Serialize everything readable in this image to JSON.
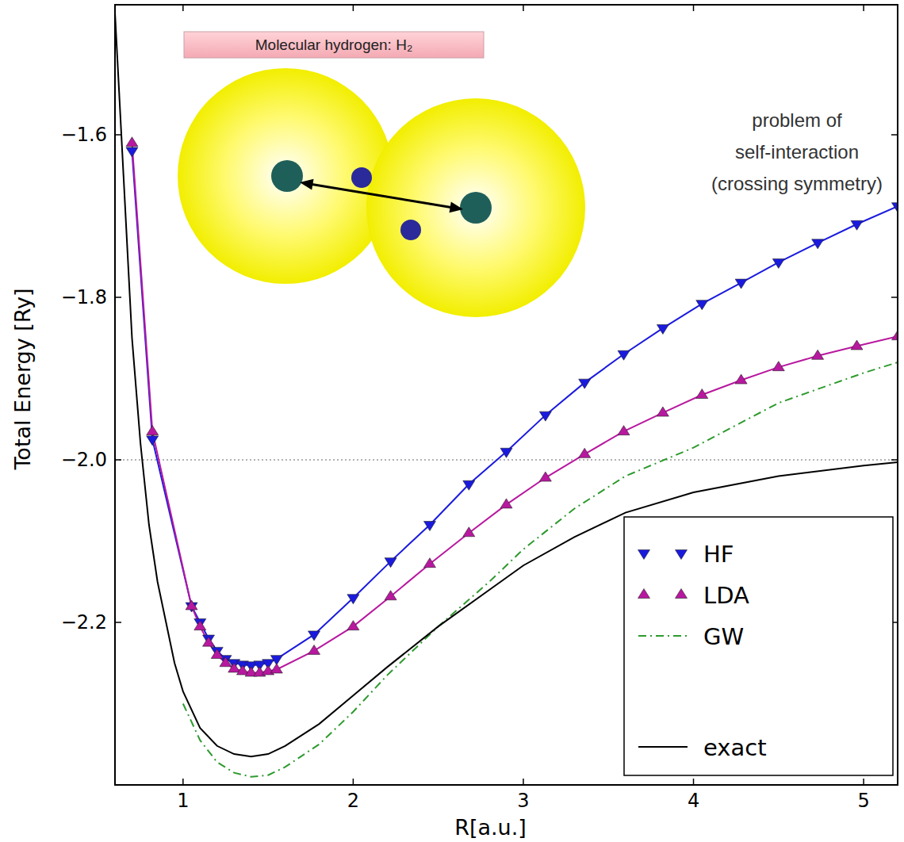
{
  "chart_data": {
    "type": "line",
    "inset_label": "Molecular hydrogen: H₂",
    "annotations": [
      "problem of",
      "self-interaction",
      "(crossing symmetry)"
    ],
    "x_label": "R[a.u.]",
    "y_label": "Total Energy [Ry]",
    "xlim": [
      0.6,
      5.2
    ],
    "ylim": [
      -2.4,
      -1.44
    ],
    "xticks": [
      1,
      2,
      3,
      4,
      5
    ],
    "yticks": [
      {
        "value": -1.6,
        "label": "−1.6"
      },
      {
        "value": -1.8,
        "label": "−1.8"
      },
      {
        "value": -2.0,
        "label": "−2.0"
      },
      {
        "value": -2.2,
        "label": "−2.2"
      }
    ],
    "reference_lines": [
      -2.0
    ],
    "grid": false,
    "legend": "lower right",
    "series": [
      {
        "name": "HF",
        "color": "#1a1adf",
        "marker": "triangle_down",
        "line_style": "solid",
        "x": [
          0.7,
          0.82,
          1.05,
          1.1,
          1.15,
          1.2,
          1.25,
          1.3,
          1.35,
          1.4,
          1.45,
          1.5,
          1.55,
          1.77,
          2.0,
          2.22,
          2.45,
          2.68,
          2.9,
          3.13,
          3.36,
          3.59,
          3.82,
          4.05,
          4.28,
          4.5,
          4.73,
          4.96,
          5.2
        ],
        "values": [
          -1.62,
          -1.975,
          -2.18,
          -2.2,
          -2.22,
          -2.235,
          -2.245,
          -2.25,
          -2.252,
          -2.253,
          -2.252,
          -2.25,
          -2.245,
          -2.215,
          -2.17,
          -2.125,
          -2.08,
          -2.03,
          -1.99,
          -1.945,
          -1.905,
          -1.87,
          -1.838,
          -1.808,
          -1.782,
          -1.757,
          -1.733,
          -1.71,
          -1.688
        ]
      },
      {
        "name": "LDA",
        "color": "#b8189f",
        "marker": "triangle_up",
        "line_style": "solid",
        "x": [
          0.7,
          0.82,
          1.05,
          1.1,
          1.15,
          1.2,
          1.25,
          1.3,
          1.35,
          1.4,
          1.45,
          1.5,
          1.55,
          1.77,
          2.0,
          2.22,
          2.45,
          2.68,
          2.9,
          3.13,
          3.36,
          3.59,
          3.82,
          4.05,
          4.28,
          4.5,
          4.73,
          4.96,
          5.2
        ],
        "values": [
          -1.61,
          -1.965,
          -2.18,
          -2.205,
          -2.225,
          -2.24,
          -2.25,
          -2.257,
          -2.26,
          -2.262,
          -2.262,
          -2.26,
          -2.258,
          -2.235,
          -2.205,
          -2.168,
          -2.128,
          -2.09,
          -2.055,
          -2.022,
          -1.993,
          -1.965,
          -1.942,
          -1.92,
          -1.902,
          -1.886,
          -1.872,
          -1.86,
          -1.848
        ]
      },
      {
        "name": "GW",
        "color": "#2e9a2e",
        "marker": "none",
        "line_style": "dashdot",
        "x": [
          1.0,
          1.1,
          1.2,
          1.3,
          1.4,
          1.5,
          1.6,
          1.8,
          2.0,
          2.2,
          2.5,
          2.8,
          3.0,
          3.3,
          3.6,
          4.0,
          4.5,
          5.0,
          5.2
        ],
        "values": [
          -2.3,
          -2.345,
          -2.372,
          -2.385,
          -2.39,
          -2.388,
          -2.378,
          -2.35,
          -2.31,
          -2.265,
          -2.205,
          -2.15,
          -2.11,
          -2.06,
          -2.02,
          -1.985,
          -1.93,
          -1.893,
          -1.88
        ]
      },
      {
        "name": "exact",
        "color": "#000000",
        "marker": "none",
        "line_style": "solid",
        "x": [
          0.6,
          0.65,
          0.7,
          0.75,
          0.8,
          0.85,
          0.9,
          0.95,
          1.0,
          1.1,
          1.2,
          1.3,
          1.4,
          1.5,
          1.6,
          1.8,
          2.0,
          2.2,
          2.5,
          2.8,
          3.0,
          3.3,
          3.6,
          4.0,
          4.5,
          5.0,
          5.2
        ],
        "values": [
          -1.45,
          -1.65,
          -1.85,
          -1.98,
          -2.08,
          -2.15,
          -2.2,
          -2.25,
          -2.285,
          -2.33,
          -2.352,
          -2.362,
          -2.365,
          -2.362,
          -2.352,
          -2.325,
          -2.29,
          -2.255,
          -2.205,
          -2.16,
          -2.13,
          -2.095,
          -2.065,
          -2.04,
          -2.02,
          -2.007,
          -2.003
        ]
      }
    ]
  }
}
